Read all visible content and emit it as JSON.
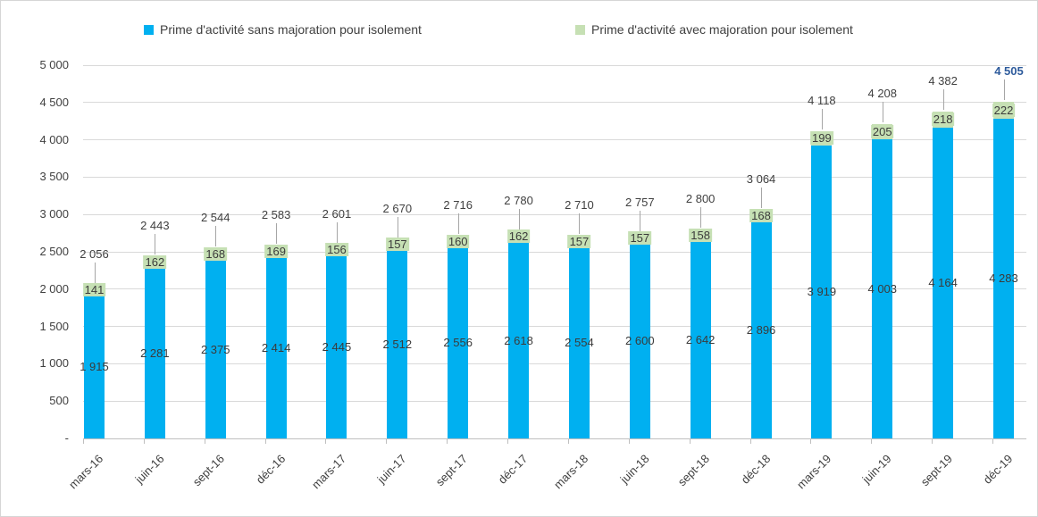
{
  "chart_data": {
    "type": "bar",
    "stacked": true,
    "title": "",
    "legend_position": "top",
    "grid": true,
    "ylim": [
      0,
      5000
    ],
    "ytick_step": 500,
    "y_tick_labels_bottom_to_top": [
      "-",
      "500",
      "1 000",
      "1 500",
      "2 000",
      "2 500",
      "3 000",
      "3 500",
      "4 000",
      "4 500",
      "5 000"
    ],
    "categories": [
      "mars-16",
      "juin-16",
      "sept-16",
      "déc-16",
      "mars-17",
      "juin-17",
      "sept-17",
      "déc-17",
      "mars-18",
      "juin-18",
      "sept-18",
      "déc-18",
      "mars-19",
      "juin-19",
      "sept-19",
      "déc-19"
    ],
    "series": [
      {
        "name": "Prime d'activité sans majoration pour isolement",
        "color": "#00b0f0",
        "values": [
          1915,
          2281,
          2375,
          2414,
          2445,
          2512,
          2556,
          2618,
          2554,
          2600,
          2642,
          2896,
          3919,
          4003,
          4164,
          4283
        ],
        "value_labels": [
          "1 915",
          "2 281",
          "2 375",
          "2 414",
          "2 445",
          "2 512",
          "2 556",
          "2 618",
          "2 554",
          "2 600",
          "2 642",
          "2 896",
          "3 919",
          "4 003",
          "4 164",
          "4 283"
        ]
      },
      {
        "name": "Prime d'activité avec majoration pour isolement",
        "color": "#c6e0b4",
        "values": [
          141,
          162,
          168,
          169,
          156,
          157,
          160,
          162,
          157,
          157,
          158,
          168,
          199,
          205,
          218,
          222
        ],
        "value_labels": [
          "141",
          "162",
          "168",
          "169",
          "156",
          "157",
          "160",
          "162",
          "157",
          "157",
          "158",
          "168",
          "199",
          "205",
          "218",
          "222"
        ]
      }
    ],
    "totals": {
      "values": [
        2056,
        2443,
        2544,
        2583,
        2601,
        2670,
        2716,
        2780,
        2710,
        2757,
        2800,
        3064,
        4118,
        4208,
        4382,
        4505
      ],
      "labels": [
        "2 056",
        "2 443",
        "2 544",
        "2 583",
        "2 601",
        "2 670",
        "2 716",
        "2 780",
        "2 710",
        "2 757",
        "2 800",
        "3 064",
        "4 118",
        "4 208",
        "4 382",
        "4 505"
      ],
      "highlight_last_color": "#2e5b9c",
      "highlight_last_bold": true
    }
  },
  "colors": {
    "gridline": "#d9d9d9",
    "axis": "#bfbfbf",
    "leader_line": "#a6a6a6",
    "text": "#404040"
  }
}
